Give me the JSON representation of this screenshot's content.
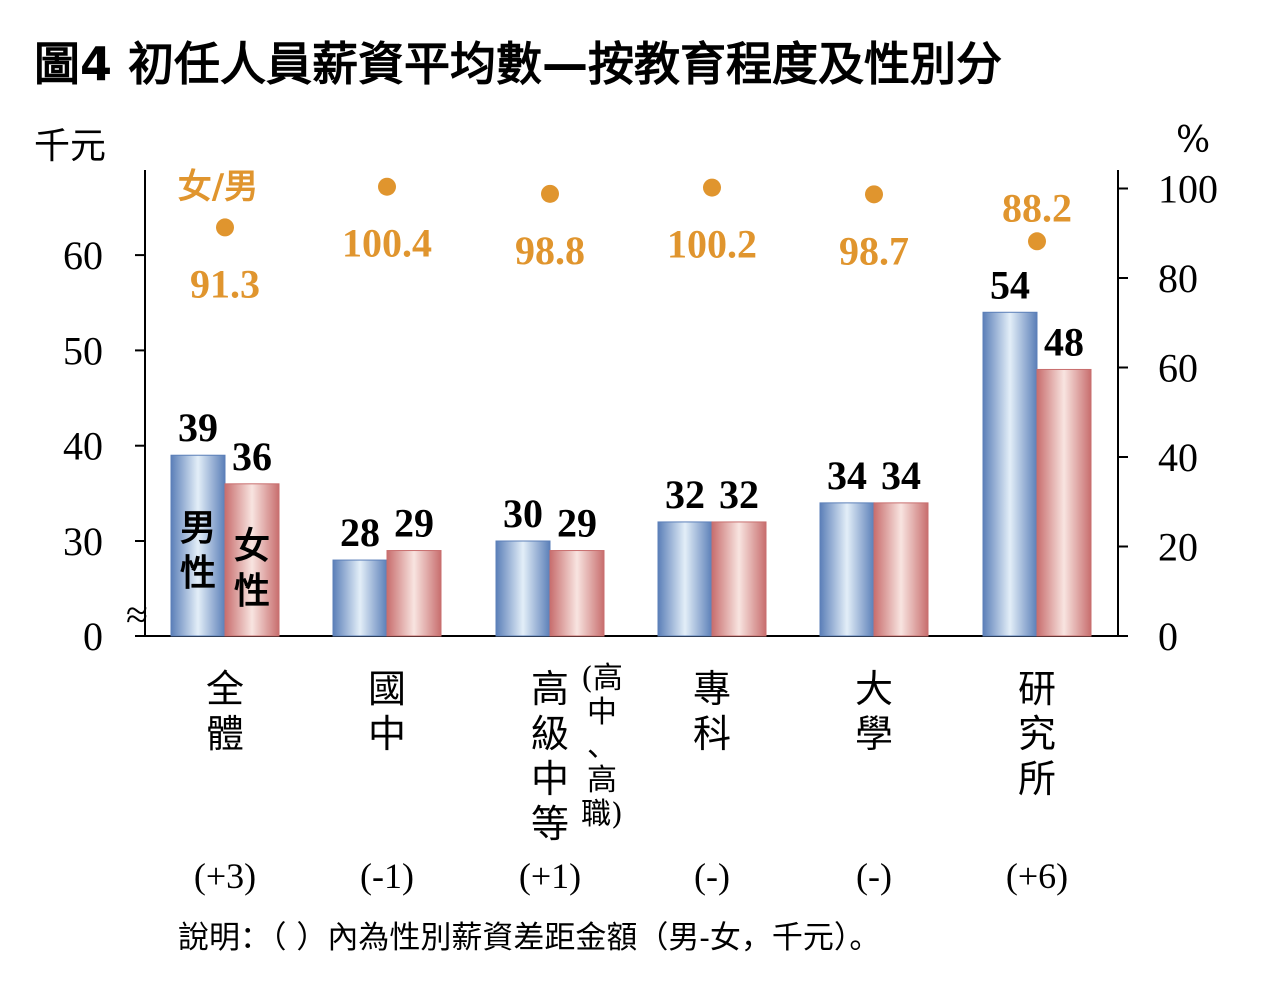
{
  "title": "圖4  初任人員薪資平均數—按教育程度及性別分",
  "note": "說明：（ ）內為性別薪資差距金額（男-女，千元）。",
  "chart_data": {
    "type": "bar",
    "left_axis": {
      "unit": "千元",
      "ticks": [
        "0",
        "30",
        "40",
        "50",
        "60"
      ],
      "break_symbol": "≈"
    },
    "right_axis": {
      "unit": "%",
      "ticks": [
        "0",
        "20",
        "40",
        "60",
        "80",
        "100"
      ],
      "range": [
        0,
        100
      ]
    },
    "categories": [
      {
        "lines": [
          "全",
          "體"
        ],
        "sub": []
      },
      {
        "lines": [
          "國",
          "中"
        ],
        "sub": []
      },
      {
        "lines": [
          "高",
          "級",
          "中",
          "等"
        ],
        "sub": [
          "(高",
          "中",
          "、",
          "高",
          "職)"
        ]
      },
      {
        "lines": [
          "專",
          "科"
        ],
        "sub": []
      },
      {
        "lines": [
          "大",
          "學"
        ],
        "sub": []
      },
      {
        "lines": [
          "研",
          "究",
          "所"
        ],
        "sub": []
      }
    ],
    "series": [
      {
        "name": "男性",
        "name_lines": [
          "男",
          "性"
        ],
        "values": [
          39,
          28,
          30,
          32,
          34,
          54
        ],
        "labels": [
          "39",
          "28",
          "30",
          "32",
          "34",
          "54"
        ],
        "color": "#5B7FB8"
      },
      {
        "name": "女性",
        "name_lines": [
          "女",
          "性"
        ],
        "values": [
          36,
          29,
          29,
          32,
          34,
          48
        ],
        "labels": [
          "36",
          "29",
          "29",
          "32",
          "34",
          "48"
        ],
        "color": "#C86E6E"
      }
    ],
    "ratio_series": {
      "name": "女/男",
      "values": [
        91.3,
        100.4,
        98.8,
        100.2,
        98.7,
        88.2
      ],
      "labels": [
        "91.3",
        "100.4",
        "98.8",
        "100.2",
        "98.7",
        "88.2"
      ],
      "color": "#E0952E"
    },
    "differences": [
      "(+3)",
      "(-1)",
      "(+1)",
      "(-)",
      "(-)",
      "(+6)"
    ]
  }
}
